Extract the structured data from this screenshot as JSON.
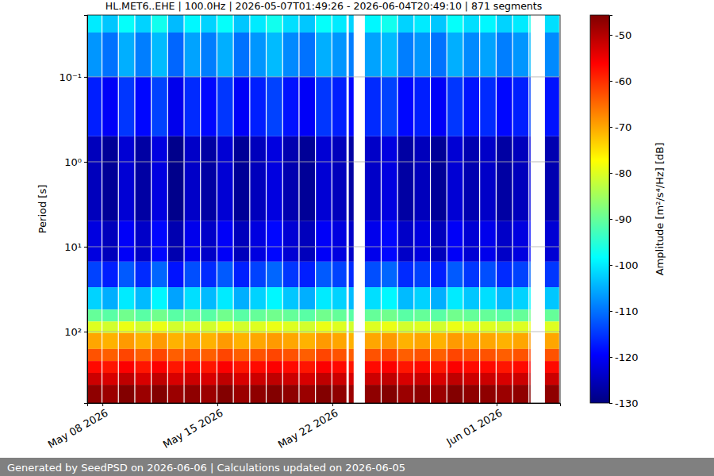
{
  "chart_data": {
    "type": "heatmap",
    "title": "HL.MET6..EHE | 100.0Hz | 2026-05-07T01:49:26 - 2026-06-04T20:49:10 | 871 segments",
    "ylabel": "Period [s]",
    "footer": "Generated by SeedPSD on 2026-06-06 | Calculations updated on 2026-06-05",
    "x": [
      "2026-05-07T01:49:26",
      "2026-05-08T00:00:00",
      "2026-05-09T00:00:00",
      "2026-05-10T00:00:00",
      "2026-05-11T00:00:00",
      "2026-05-12T00:00:00",
      "2026-05-13T00:00:00",
      "2026-05-14T00:00:00",
      "2026-05-15T00:00:00",
      "2026-05-16T00:00:00",
      "2026-05-17T00:00:00",
      "2026-05-18T00:00:00",
      "2026-05-19T00:00:00",
      "2026-05-20T00:00:00",
      "2026-05-21T00:00:00",
      "2026-05-22T00:00:00",
      "2026-05-23T00:00:00",
      "2026-05-23T23:30:00",
      "2026-05-25T00:00:00",
      "2026-05-26T00:00:00",
      "2026-05-27T00:00:00",
      "2026-05-28T00:00:00",
      "2026-05-29T00:00:00",
      "2026-05-30T00:00:00",
      "2026-05-31T00:00:00",
      "2026-06-01T00:00:00",
      "2026-06-02T00:00:00",
      "2026-06-03T00:00:00",
      "2026-06-03T22:40:00"
    ],
    "x_end": [
      "2026-05-08T00:00:00",
      "2026-05-09T00:00:00",
      "2026-05-10T00:00:00",
      "2026-05-11T00:00:00",
      "2026-05-12T00:00:00",
      "2026-05-13T00:00:00",
      "2026-05-14T00:00:00",
      "2026-05-15T00:00:00",
      "2026-05-16T00:00:00",
      "2026-05-17T00:00:00",
      "2026-05-18T00:00:00",
      "2026-05-19T00:00:00",
      "2026-05-20T00:00:00",
      "2026-05-21T00:00:00",
      "2026-05-22T00:00:00",
      "2026-05-22T22:00:00",
      "2026-05-23T08:30:00",
      "2026-05-25T00:00:00",
      "2026-05-26T00:00:00",
      "2026-05-27T00:00:00",
      "2026-05-28T00:00:00",
      "2026-05-29T00:00:00",
      "2026-05-30T00:00:00",
      "2026-05-31T00:00:00",
      "2026-06-01T00:00:00",
      "2026-06-02T00:00:00",
      "2026-06-03T00:00:00",
      "2026-06-03T03:00:00",
      "2026-06-04T20:49:10"
    ],
    "y_edges": [
      0.0187,
      0.03,
      0.1,
      0.5,
      5,
      15,
      30,
      55,
      76,
      104,
      160,
      222,
      306,
      423,
      693
    ],
    "values": [
      [
        -100,
        -107,
        -117,
        -125,
        -122,
        -114,
        -102,
        -90,
        -80,
        -70,
        -63,
        -57,
        -52,
        -47
      ],
      [
        -103,
        -110,
        -120,
        -128,
        -125,
        -117,
        -105,
        -91,
        -81,
        -71,
        -64,
        -58,
        -53,
        -48
      ],
      [
        -98,
        -105,
        -115,
        -123,
        -120,
        -112,
        -100,
        -89,
        -79,
        -69,
        -62,
        -56,
        -51,
        -46
      ],
      [
        -102,
        -109,
        -119,
        -127,
        -124,
        -116,
        -104,
        -91,
        -81,
        -71,
        -64,
        -58,
        -53,
        -48
      ],
      [
        -97,
        -104,
        -114,
        -122,
        -119,
        -111,
        -99,
        -89,
        -79,
        -69,
        -62,
        -56,
        -51,
        -46
      ],
      [
        -104,
        -111,
        -121,
        -129,
        -126,
        -118,
        -106,
        -91,
        -81,
        -71,
        -64,
        -58,
        -53,
        -48
      ],
      [
        -99,
        -106,
        -116,
        -124,
        -121,
        -113,
        -101,
        -90,
        -80,
        -70,
        -63,
        -57,
        -52,
        -47
      ],
      [
        -102,
        -109,
        -119,
        -127,
        -124,
        -116,
        -104,
        -91,
        -81,
        -71,
        -64,
        -58,
        -53,
        -48
      ],
      [
        -98,
        -105,
        -115,
        -123,
        -120,
        -112,
        -100,
        -89,
        -79,
        -69,
        -62,
        -56,
        -51,
        -46
      ],
      [
        -103,
        -110,
        -120,
        -128,
        -125,
        -117,
        -105,
        -91,
        -81,
        -71,
        -64,
        -58,
        -53,
        -48
      ],
      [
        -100,
        -107,
        -117,
        -125,
        -122,
        -114,
        -102,
        -90,
        -80,
        -70,
        -63,
        -57,
        -52,
        -47
      ],
      [
        -97,
        -104,
        -114,
        -122,
        -119,
        -111,
        -99,
        -89,
        -79,
        -69,
        -62,
        -56,
        -51,
        -46
      ],
      [
        -101,
        -108,
        -118,
        -126,
        -123,
        -115,
        -103,
        -90,
        -80,
        -70,
        -63,
        -57,
        -52,
        -47
      ],
      [
        -103,
        -110,
        -120,
        -128,
        -125,
        -117,
        -105,
        -91,
        -81,
        -71,
        -64,
        -58,
        -53,
        -48
      ],
      [
        -98,
        -105,
        -115,
        -123,
        -120,
        -112,
        -100,
        -89,
        -79,
        -69,
        -62,
        -56,
        -51,
        -46
      ],
      [
        -100,
        -107,
        -117,
        -125,
        -122,
        -114,
        -102,
        -90,
        -80,
        -70,
        -63,
        -57,
        -52,
        -47
      ],
      [
        -102,
        -109,
        -119,
        -127,
        -124,
        -116,
        -104,
        -91,
        -81,
        -71,
        -64,
        -58,
        -53,
        -48
      ],
      [
        -99,
        -106,
        -116,
        -124,
        -121,
        -113,
        -101,
        -90,
        -80,
        -70,
        -63,
        -57,
        -52,
        -47
      ],
      [
        -97,
        -104,
        -114,
        -122,
        -119,
        -111,
        -99,
        -89,
        -79,
        -69,
        -62,
        -56,
        -51,
        -46
      ],
      [
        -102,
        -109,
        -119,
        -127,
        -124,
        -116,
        -104,
        -91,
        -81,
        -71,
        -64,
        -58,
        -53,
        -48
      ],
      [
        -100,
        -107,
        -117,
        -125,
        -122,
        -114,
        -102,
        -90,
        -80,
        -70,
        -63,
        -57,
        -52,
        -47
      ],
      [
        -103,
        -110,
        -120,
        -128,
        -125,
        -117,
        -105,
        -91,
        -81,
        -71,
        -64,
        -58,
        -53,
        -48
      ],
      [
        -98,
        -105,
        -115,
        -123,
        -120,
        -112,
        -100,
        -89,
        -79,
        -69,
        -62,
        -56,
        -51,
        -46
      ],
      [
        -101,
        -108,
        -118,
        -126,
        -123,
        -115,
        -103,
        -90,
        -80,
        -70,
        -63,
        -57,
        -52,
        -47
      ],
      [
        -99,
        -106,
        -116,
        -124,
        -121,
        -113,
        -101,
        -90,
        -80,
        -70,
        -63,
        -57,
        -52,
        -47
      ],
      [
        -102,
        -109,
        -119,
        -127,
        -124,
        -116,
        -104,
        -91,
        -81,
        -71,
        -64,
        -58,
        -53,
        -48
      ],
      [
        -100,
        -107,
        -117,
        -125,
        -122,
        -114,
        -102,
        -90,
        -80,
        -70,
        -63,
        -57,
        -52,
        -47
      ],
      [
        -97,
        -104,
        -114,
        -122,
        -119,
        -111,
        -99,
        -89,
        -79,
        -69,
        -62,
        -56,
        -51,
        -46
      ],
      [
        -101,
        -108,
        -118,
        -126,
        -123,
        -115,
        -103,
        -90,
        -80,
        -70,
        -63,
        -57,
        -52,
        -47
      ]
    ],
    "xlim": [
      "2026-05-07T01:49:26",
      "2026-06-04T20:49:10"
    ],
    "xticks": [
      {
        "value": "2026-05-08T00:00:00",
        "label": "May 08 2026"
      },
      {
        "value": "2026-05-15T00:00:00",
        "label": "May 15 2026"
      },
      {
        "value": "2026-05-22T00:00:00",
        "label": "May 22 2026"
      },
      {
        "value": "2026-06-01T00:00:00",
        "label": "Jun 01 2026"
      }
    ],
    "ylim": [
      0.0187,
      693
    ],
    "yticks": [
      {
        "value": 0.1,
        "label": "10⁻¹"
      },
      {
        "value": 1,
        "label": "10⁰"
      },
      {
        "value": 10,
        "label": "10¹"
      },
      {
        "value": 100,
        "label": "10²"
      }
    ],
    "log": "y",
    "grid": "y",
    "colorbar": {
      "label": "Amplitude [m²/s⁴/Hz] [dB]",
      "range": [
        -130,
        -45.7
      ],
      "ticks": [
        -130,
        -120,
        -110,
        -100,
        -90,
        -80,
        -70,
        -60,
        -50
      ]
    }
  }
}
